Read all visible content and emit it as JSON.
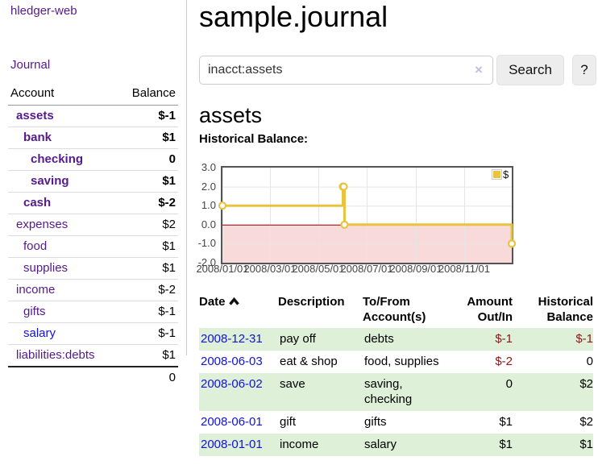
{
  "app": {
    "title": "hledger-web"
  },
  "sidebar": {
    "journal_link": "Journal",
    "header": {
      "account": "Account",
      "balance": "Balance"
    },
    "accounts": [
      {
        "name": "assets",
        "balance": "$-1"
      },
      {
        "name": "bank",
        "balance": "$1"
      },
      {
        "name": "checking",
        "balance": "0"
      },
      {
        "name": "saving",
        "balance": "$1"
      },
      {
        "name": "cash",
        "balance": "$-2"
      },
      {
        "name": "expenses",
        "balance": "$2"
      },
      {
        "name": "food",
        "balance": "$1"
      },
      {
        "name": "supplies",
        "balance": "$1"
      },
      {
        "name": "income",
        "balance": "$-2"
      },
      {
        "name": "gifts",
        "balance": "$-1"
      },
      {
        "name": "salary",
        "balance": "$-1"
      },
      {
        "name": "liabilities:debts",
        "balance": "$1"
      }
    ],
    "total": "0"
  },
  "header": {
    "title": "sample.journal"
  },
  "search": {
    "value": "inacct:assets",
    "clear_icon": "×",
    "button_label": "Search",
    "help_label": "?"
  },
  "account_page": {
    "heading": "assets",
    "chart_label": "Historical Balance:"
  },
  "chart_data": {
    "type": "line",
    "step": true,
    "title": "Historical Balance:",
    "legend": {
      "position": "top-right",
      "label": "$"
    },
    "line_color": "#e9c33d",
    "negative_fill": "#f9dada",
    "zero_line_color": "#8b0000",
    "grid_color": "#e5e5e5",
    "ylim": [
      -2,
      3
    ],
    "x_range_days": [
      0,
      365
    ],
    "y_ticks": [
      {
        "v": 3,
        "label": "3.0"
      },
      {
        "v": 2,
        "label": "2.0"
      },
      {
        "v": 1,
        "label": "1.0"
      },
      {
        "v": 0,
        "label": "0.0"
      },
      {
        "v": -1,
        "label": "-1.0"
      },
      {
        "v": -2,
        "label": "-2.0"
      }
    ],
    "x_ticks": [
      {
        "day": 0,
        "label": "2008/01/01"
      },
      {
        "day": 60,
        "label": "2008/03/01"
      },
      {
        "day": 121,
        "label": "2008/05/01"
      },
      {
        "day": 182,
        "label": "2008/07/01"
      },
      {
        "day": 244,
        "label": "2008/09/01"
      },
      {
        "day": 305,
        "label": "2008/11/01"
      }
    ],
    "series": [
      {
        "name": "$",
        "points": [
          {
            "date": "2008-01-01",
            "day": 0,
            "y": 1
          },
          {
            "date": "2008-06-01",
            "day": 152,
            "y": 2
          },
          {
            "date": "2008-06-02",
            "day": 153,
            "y": 2
          },
          {
            "date": "2008-06-03",
            "day": 154,
            "y": 0
          },
          {
            "date": "2008-12-31",
            "day": 365,
            "y": -1
          }
        ]
      }
    ]
  },
  "register": {
    "columns": {
      "date": "Date",
      "description": "Description",
      "accounts": "To/From Account(s)",
      "amount": "Amount Out/In",
      "balance": "Historical Balance"
    },
    "rows": [
      {
        "date": "2008-12-31",
        "description": "pay off",
        "accounts": "debts",
        "amount": "$-1",
        "balance": "$-1"
      },
      {
        "date": "2008-06-03",
        "description": "eat & shop",
        "accounts": "food, supplies",
        "amount": "$-2",
        "balance": "0"
      },
      {
        "date": "2008-06-02",
        "description": "save",
        "accounts": "saving,\nchecking",
        "amount": "0",
        "balance": "$2"
      },
      {
        "date": "2008-06-01",
        "description": "gift",
        "accounts": "gifts",
        "amount": "$1",
        "balance": "$2"
      },
      {
        "date": "2008-01-01",
        "description": "income",
        "accounts": "salary",
        "amount": "$1",
        "balance": "$1"
      }
    ]
  }
}
